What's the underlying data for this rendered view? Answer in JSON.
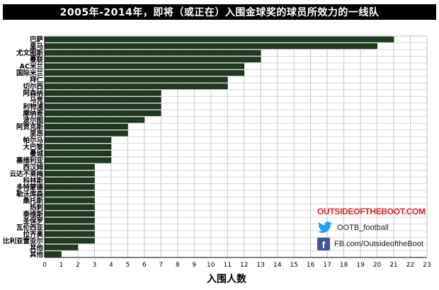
{
  "title": "2005年-2014年，即将（或正在）入围金球奖的球员所效力的一线队",
  "branding": {
    "site": "OUTSIDEOFTHEBOOT.COM",
    "twitter_handle": "OOTB_football",
    "facebook_page": "FB.com/OutsideoftheBoot",
    "twitter_icon": "twitter-bird-icon",
    "facebook_icon": "facebook-f-icon"
  },
  "colors": {
    "bar": "#1f3a1f",
    "grid": "#c8c8c8",
    "title_bg": "#000000",
    "brand_red": "#e02626"
  },
  "chart_data": {
    "type": "bar",
    "orientation": "horizontal",
    "title": "2005年-2014年，即将（或正在）入围金球奖的球员所效力的一线队",
    "xlabel": "入围人数",
    "ylabel": "",
    "xlim": [
      0,
      23
    ],
    "xticks": [
      0,
      1,
      2,
      3,
      4,
      5,
      6,
      7,
      8,
      9,
      10,
      11,
      12,
      13,
      14,
      15,
      16,
      17,
      18,
      19,
      20,
      21,
      22,
      23
    ],
    "grid": true,
    "categories": [
      "巴萨",
      "皇马",
      "尤文图斯",
      "曼联",
      "AC米兰",
      "国际米兰",
      "拜仁",
      "切尔西",
      "阿森纳",
      "马竞",
      "利物浦",
      "摩纳哥",
      "波尔图",
      "阿贾克斯",
      "里昂",
      "帕尔马",
      "大巴黎",
      "曼城",
      "塞维利亚",
      "西汉姆",
      "云达不莱梅",
      "科林斯",
      "多特蒙德",
      "勒沃库森",
      "桑托斯",
      "热刺",
      "泰维斯",
      "圣保罗",
      "瓦伦西亚",
      "拉齐奥",
      "比利亚雷亚尔",
      "其他",
      "其他"
    ],
    "values": [
      21,
      20,
      13,
      13,
      12,
      12,
      11,
      11,
      7,
      7,
      7,
      7,
      6,
      5,
      5,
      4,
      4,
      4,
      4,
      3,
      3,
      3,
      3,
      3,
      3,
      3,
      3,
      3,
      3,
      3,
      3,
      2,
      1
    ]
  }
}
